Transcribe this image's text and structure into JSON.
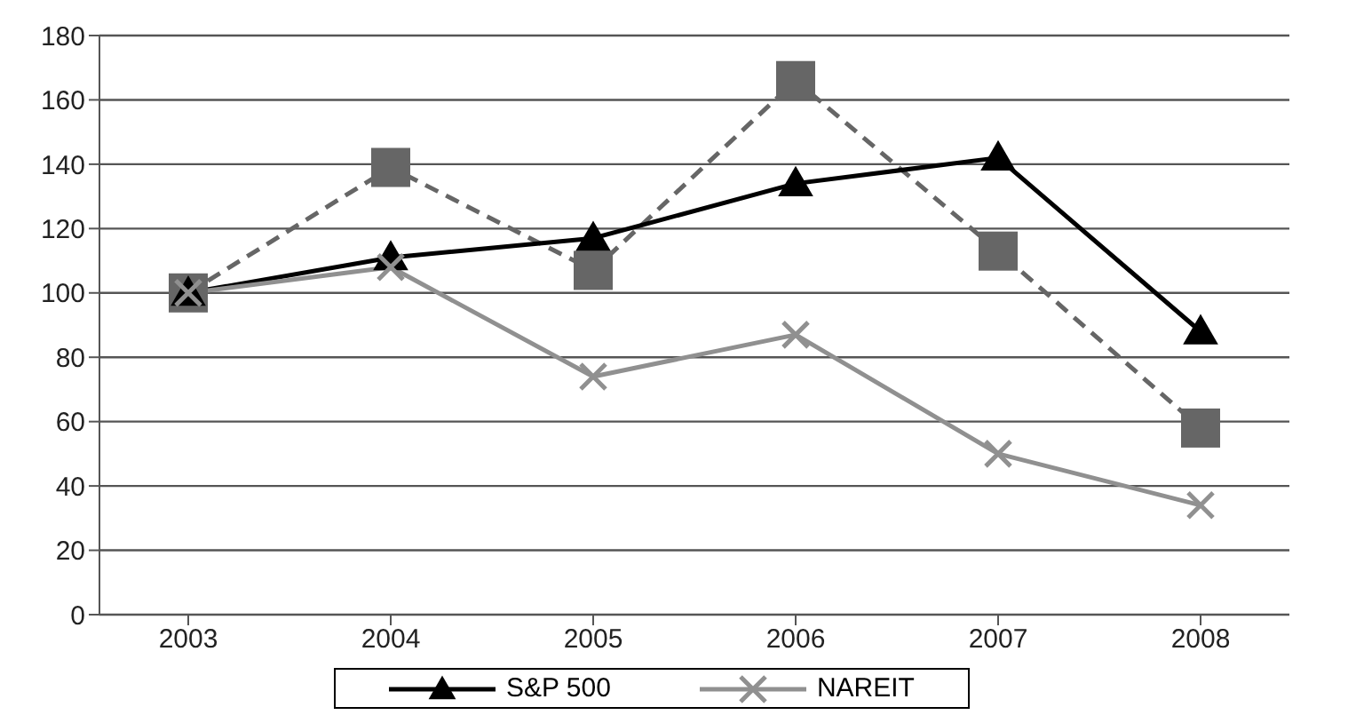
{
  "chart_data": {
    "type": "line",
    "categories": [
      "2003",
      "2004",
      "2005",
      "2006",
      "2007",
      "2008"
    ],
    "series": [
      {
        "color": "#666666",
        "marker": "square",
        "line_style": "dashed",
        "values": [
          100,
          139,
          107,
          166,
          113,
          58
        ]
      },
      {
        "name": "S&P 500",
        "color": "#000000",
        "marker": "triangle",
        "line_style": "solid",
        "values": [
          100,
          111,
          117,
          134,
          142,
          88
        ]
      },
      {
        "name": "NAREIT",
        "color": "#909090",
        "marker": "cross",
        "line_style": "solid",
        "values": [
          100,
          108,
          74,
          87,
          50,
          34
        ]
      }
    ],
    "ylim": [
      0,
      180
    ],
    "yticks": [
      0,
      20,
      40,
      60,
      80,
      100,
      120,
      140,
      160,
      180
    ],
    "grid": "y",
    "legend": "bottom"
  }
}
